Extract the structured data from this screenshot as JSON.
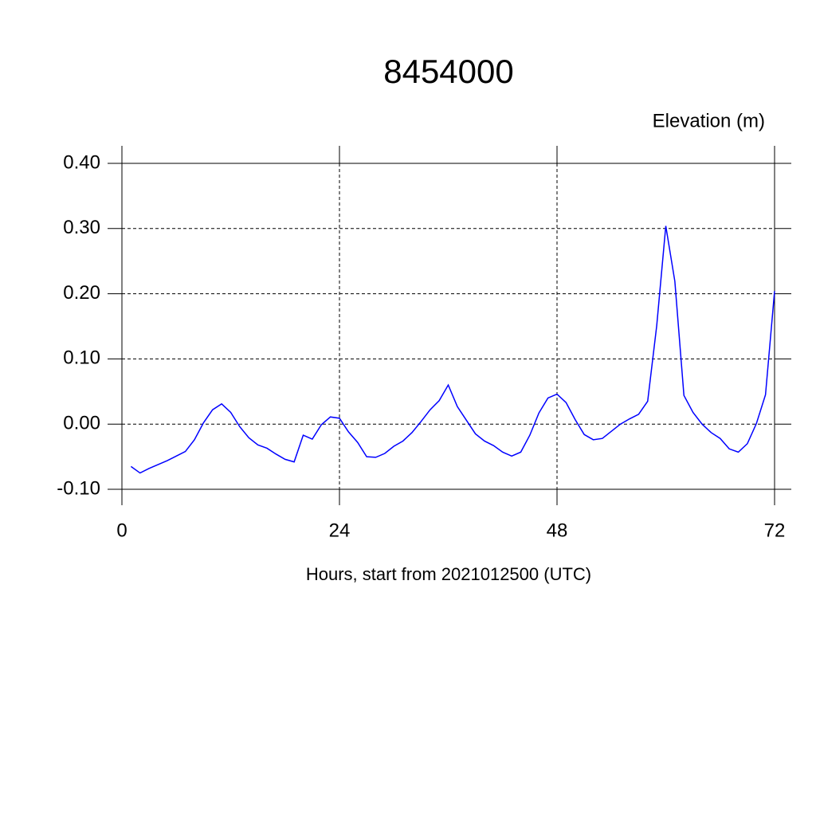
{
  "chart_data": {
    "type": "line",
    "title": "8454000",
    "y_label": "Elevation (m)",
    "x_label": "Hours, start from 2021012500 (UTC)",
    "x": [
      1,
      2,
      3,
      4,
      5,
      6,
      7,
      8,
      9,
      10,
      11,
      12,
      13,
      14,
      15,
      16,
      17,
      18,
      19,
      20,
      21,
      22,
      23,
      24,
      25,
      26,
      27,
      28,
      29,
      30,
      31,
      32,
      33,
      34,
      35,
      36,
      37,
      38,
      39,
      40,
      41,
      42,
      43,
      44,
      45,
      46,
      47,
      48,
      49,
      50,
      51,
      52,
      53,
      54,
      55,
      56,
      57,
      58,
      59,
      60,
      61,
      62,
      63,
      64,
      65,
      66,
      67,
      68,
      69,
      70,
      71,
      72
    ],
    "series": [
      {
        "color": "#0000ff",
        "values": [
          -0.065,
          -0.075,
          -0.068,
          -0.062,
          -0.056,
          -0.049,
          -0.042,
          -0.024,
          0.002,
          0.022,
          0.031,
          0.018,
          -0.004,
          -0.021,
          -0.032,
          -0.037,
          -0.046,
          -0.054,
          -0.058,
          -0.017,
          -0.023,
          -0.001,
          0.011,
          0.009,
          -0.012,
          -0.028,
          -0.05,
          -0.051,
          -0.045,
          -0.034,
          -0.026,
          -0.013,
          0.004,
          0.022,
          0.036,
          0.06,
          0.027,
          0.006,
          -0.015,
          -0.026,
          -0.033,
          -0.043,
          -0.049,
          -0.043,
          -0.017,
          0.017,
          0.04,
          0.046,
          0.033,
          0.007,
          -0.016,
          -0.024,
          -0.022,
          -0.011,
          0.0,
          0.008,
          0.015,
          0.035,
          0.151,
          0.304,
          0.219,
          0.044,
          0.018,
          0.0,
          -0.013,
          -0.022,
          -0.038,
          -0.043,
          -0.03,
          0.001,
          0.045,
          0.204
        ]
      }
    ],
    "xlim": [
      0,
      72
    ],
    "xticks": [
      0,
      24,
      48,
      72
    ],
    "ylim": [
      -0.1,
      0.4
    ],
    "yticks": [
      {
        "value": 0.4,
        "label": "0.40"
      },
      {
        "value": 0.3,
        "label": "0.30"
      },
      {
        "value": 0.2,
        "label": "0.20"
      },
      {
        "value": 0.1,
        "label": "0.10"
      },
      {
        "value": 0,
        "label": "0.00"
      },
      {
        "value": -0.1,
        "label": "-0.10"
      }
    ],
    "grid": true
  }
}
